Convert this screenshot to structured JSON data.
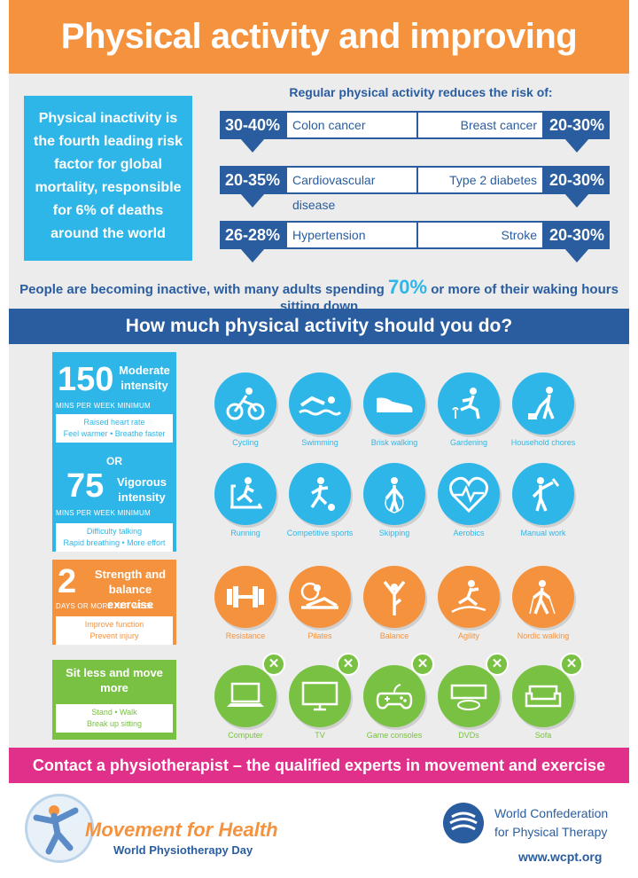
{
  "header": {
    "title": "Physical activity and improving health"
  },
  "inactivity": {
    "text": "Physical inactivity is the fourth leading risk factor for global mortality, responsible for 6% of deaths around the world"
  },
  "risk": {
    "heading": "Regular physical activity reduces the risk of:",
    "items": [
      {
        "pct": "30-40%",
        "label": "Colon cancer"
      },
      {
        "pct": "20-30%",
        "label": "Breast cancer"
      },
      {
        "pct": "20-35%",
        "label": "Cardiovascular disease"
      },
      {
        "pct": "20-30%",
        "label": "Type 2 diabetes"
      },
      {
        "pct": "26-28%",
        "label": "Hypertension"
      },
      {
        "pct": "20-30%",
        "label": "Stroke"
      }
    ]
  },
  "sitting": {
    "pre": "People are becoming inactive, with many adults spending ",
    "value": "70%",
    "post": " or more of their waking hours sitting down"
  },
  "howmuch": {
    "title": "How much physical activity should you do?"
  },
  "moderate": {
    "number": "150",
    "label": "Moderate intensity",
    "sub": "MINS PER WEEK MINIMUM",
    "line1": "Raised heart rate",
    "line2": "Feel warmer  •  Breathe faster"
  },
  "or_label": "OR",
  "vigorous": {
    "number": "75",
    "label": "Vigorous intensity",
    "sub": "MINS PER WEEK MINIMUM",
    "line1": "Difficulty talking",
    "line2": "Rapid breathing  •  More effort"
  },
  "strength": {
    "number": "2",
    "label": "Strength and balance exercise",
    "sub": "DAYS OR MORE PER WEEK",
    "line1": "Improve function",
    "line2": "Prevent injury"
  },
  "sitless": {
    "label": "Sit less and move more",
    "line1": "Stand  •  Walk",
    "line2": "Break up sitting"
  },
  "activities": {
    "blue_row1": [
      "Cycling",
      "Swimming",
      "Brisk walking",
      "Gardening",
      "Household chores"
    ],
    "blue_row2": [
      "Running",
      "Competitive sports",
      "Skipping",
      "Aerobics",
      "Manual work"
    ],
    "orange_row": [
      "Resistance",
      "Pilates",
      "Balance",
      "Agility",
      "Nordic walking"
    ],
    "green_row": [
      "Computer",
      "TV",
      "Game consoles",
      "DVDs",
      "Sofa"
    ]
  },
  "contact": {
    "text": "Contact a physiotherapist –  the qualified experts in movement and exercise"
  },
  "footer": {
    "mfh_title": "Movement for Health",
    "mfh_sub": "World Physiotherapy Day",
    "wcpt_line1": "World Confederation",
    "wcpt_line2": "for Physical Therapy",
    "url": "www.wcpt.org"
  },
  "colors": {
    "orange": "#f5923e",
    "blue": "#2fb6e8",
    "navy": "#2a5d9f",
    "green": "#79c143",
    "magenta": "#e0308a"
  }
}
